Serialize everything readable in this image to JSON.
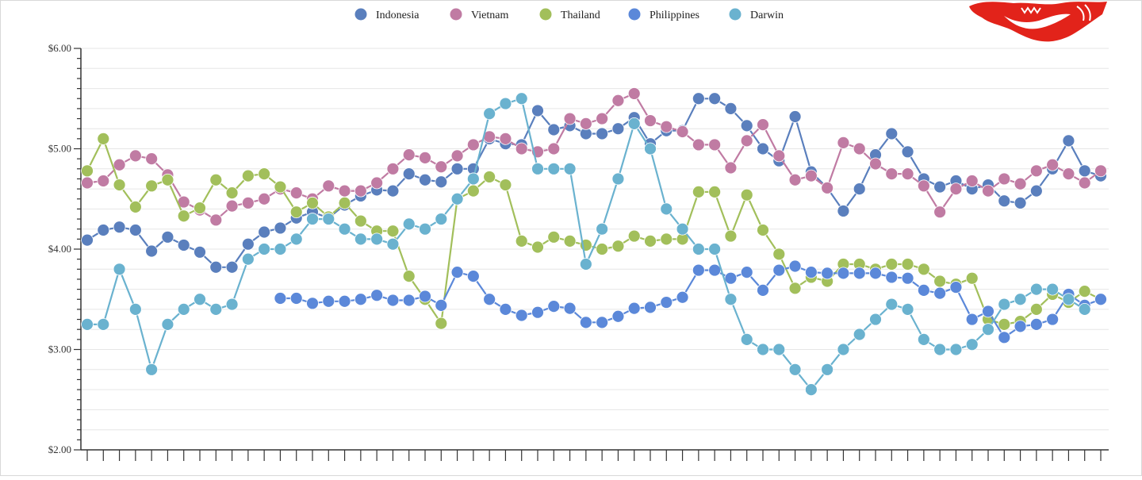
{
  "chart_data": {
    "type": "line",
    "title": "",
    "xlabel": "",
    "ylabel": "",
    "ylim": [
      2.0,
      6.0
    ],
    "y_ticks": [
      "$2.00",
      "$3.00",
      "$4.00",
      "$5.00",
      "$6.00"
    ],
    "grid": true,
    "legend_position": "top-center",
    "n_points": 64,
    "series": [
      {
        "name": "Indonesia",
        "color": "#5a7fbd",
        "values": [
          4.09,
          4.19,
          4.22,
          4.19,
          3.98,
          4.12,
          4.04,
          3.97,
          3.82,
          3.82,
          4.05,
          4.17,
          4.21,
          4.31,
          4.37,
          4.31,
          4.44,
          4.53,
          4.59,
          4.58,
          4.75,
          4.69,
          4.67,
          4.8,
          4.8,
          5.1,
          5.05,
          5.04,
          5.38,
          5.19,
          5.23,
          5.15,
          5.15,
          5.2,
          5.31,
          5.05,
          5.18,
          5.18,
          5.5,
          5.5,
          5.4,
          5.23,
          5.0,
          4.88,
          5.32,
          4.77,
          4.61,
          4.38,
          4.6,
          4.94,
          5.15,
          4.97,
          4.7,
          4.62,
          4.68,
          4.6,
          4.64,
          4.48,
          4.46,
          4.58,
          4.8,
          5.08,
          4.78,
          4.73
        ]
      },
      {
        "name": "Vietnam",
        "color": "#c07ba3",
        "values": [
          4.66,
          4.68,
          4.84,
          4.93,
          4.9,
          4.74,
          4.47,
          4.39,
          4.29,
          4.43,
          4.46,
          4.5,
          4.6,
          4.56,
          4.5,
          4.63,
          4.58,
          4.58,
          4.66,
          4.8,
          4.94,
          4.91,
          4.82,
          4.93,
          5.04,
          5.12,
          5.1,
          5.0,
          4.97,
          5.0,
          5.3,
          5.25,
          5.3,
          5.48,
          5.55,
          5.28,
          5.22,
          5.17,
          5.04,
          5.04,
          4.81,
          5.08,
          5.24,
          4.93,
          4.69,
          4.73,
          4.61,
          5.06,
          5.0,
          4.85,
          4.75,
          4.75,
          4.63,
          4.37,
          4.6,
          4.68,
          4.58,
          4.7,
          4.65,
          4.78,
          4.84,
          4.75,
          4.66,
          4.78
        ]
      },
      {
        "name": "Thailand",
        "color": "#a2bf5b",
        "values": [
          4.78,
          5.1,
          4.64,
          4.42,
          4.63,
          4.69,
          4.33,
          4.41,
          4.69,
          4.56,
          4.73,
          4.75,
          4.62,
          4.37,
          4.46,
          4.32,
          4.46,
          4.28,
          4.18,
          4.18,
          3.73,
          3.5,
          3.26,
          4.5,
          4.58,
          4.72,
          4.64,
          4.08,
          4.02,
          4.12,
          4.08,
          4.04,
          4.0,
          4.03,
          4.13,
          4.08,
          4.1,
          4.1,
          4.57,
          4.57,
          4.13,
          4.54,
          4.19,
          3.95,
          3.61,
          3.72,
          3.68,
          3.85,
          3.85,
          3.8,
          3.85,
          3.85,
          3.8,
          3.68,
          3.65,
          3.71,
          3.3,
          3.25,
          3.28,
          3.4,
          3.55,
          3.47,
          3.58,
          3.5
        ]
      },
      {
        "name": "Philippines",
        "color": "#5b88d9",
        "values": [
          null,
          null,
          null,
          null,
          null,
          null,
          null,
          null,
          null,
          null,
          null,
          null,
          3.51,
          3.51,
          3.46,
          3.48,
          3.48,
          3.5,
          3.54,
          3.49,
          3.49,
          3.53,
          3.44,
          3.77,
          3.73,
          3.5,
          3.4,
          3.34,
          3.37,
          3.43,
          3.41,
          3.27,
          3.27,
          3.33,
          3.41,
          3.42,
          3.47,
          3.52,
          3.79,
          3.79,
          3.71,
          3.77,
          3.59,
          3.79,
          3.83,
          3.77,
          3.76,
          3.76,
          3.76,
          3.76,
          3.72,
          3.71,
          3.59,
          3.56,
          3.62,
          3.3,
          3.38,
          3.12,
          3.23,
          3.25,
          3.3,
          3.55,
          3.44,
          3.5
        ]
      },
      {
        "name": "Darwin",
        "color": "#6ab2cf",
        "values": [
          3.25,
          3.25,
          3.8,
          3.4,
          2.8,
          3.25,
          3.4,
          3.5,
          3.4,
          3.45,
          3.9,
          4.0,
          4.0,
          4.1,
          4.3,
          4.3,
          4.2,
          4.1,
          4.1,
          4.05,
          4.25,
          4.2,
          4.3,
          4.5,
          4.7,
          5.35,
          5.45,
          5.5,
          4.8,
          4.8,
          4.8,
          3.85,
          4.2,
          4.7,
          5.25,
          5.0,
          4.4,
          4.2,
          4.0,
          4.0,
          3.5,
          3.1,
          3.0,
          3.0,
          2.8,
          2.6,
          2.8,
          3.0,
          3.15,
          3.3,
          3.45,
          3.4,
          3.1,
          3.0,
          3.0,
          3.05,
          3.2,
          3.45,
          3.5,
          3.6,
          3.6,
          3.5,
          3.4,
          null
        ]
      }
    ]
  }
}
